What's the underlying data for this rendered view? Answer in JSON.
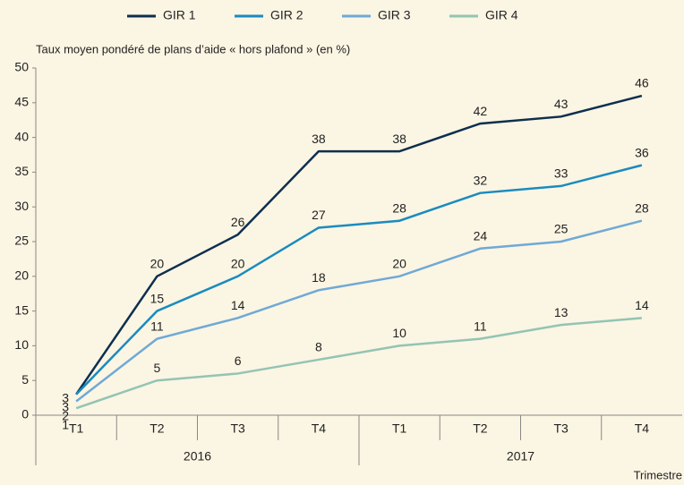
{
  "chart_data": {
    "type": "line",
    "y_label": "Taux moyen pondéré de plans d’aide « hors plafond » (en %)",
    "x_label": "Trimestre",
    "categories": [
      "T1",
      "T2",
      "T3",
      "T4",
      "T1",
      "T2",
      "T3",
      "T4"
    ],
    "category_groups": [
      "2016",
      "2017"
    ],
    "series": [
      {
        "name": "GIR 1",
        "color": "#0d2f4f",
        "values": [
          3,
          20,
          26,
          38,
          38,
          42,
          43,
          46
        ]
      },
      {
        "name": "GIR 2",
        "color": "#1a8bbf",
        "values": [
          3,
          15,
          20,
          27,
          28,
          32,
          33,
          36
        ]
      },
      {
        "name": "GIR 3",
        "color": "#6fa9d6",
        "values": [
          2,
          11,
          14,
          18,
          20,
          24,
          25,
          28
        ]
      },
      {
        "name": "GIR 4",
        "color": "#93c4b4",
        "values": [
          1,
          5,
          6,
          8,
          10,
          11,
          13,
          14
        ]
      }
    ],
    "ylim": [
      0,
      50
    ],
    "yticks": [
      0,
      5,
      10,
      15,
      20,
      25,
      30,
      35,
      40,
      45,
      50
    ],
    "legend": "top"
  }
}
